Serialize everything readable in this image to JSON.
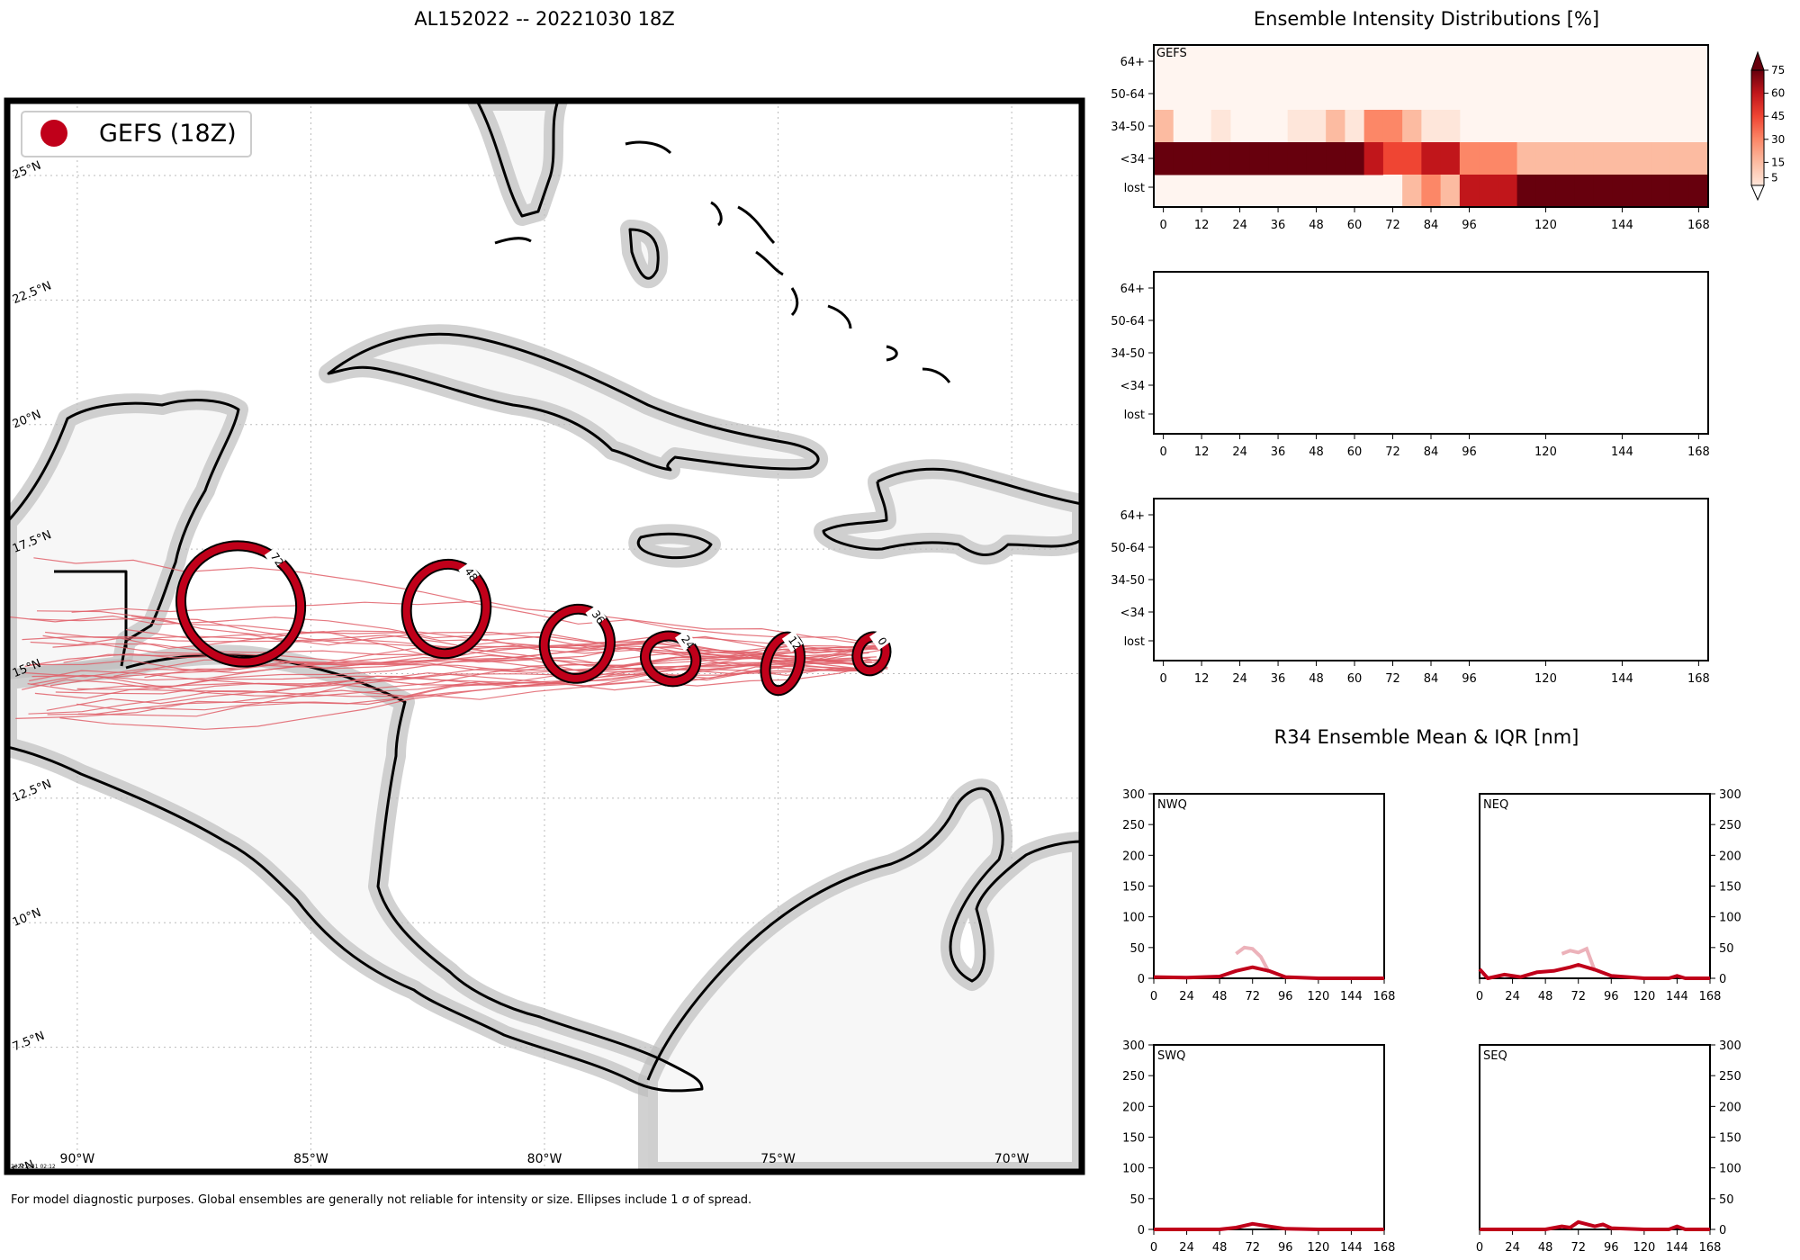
{
  "page": {
    "map_title": "AL152022 -- 20221030 18Z",
    "intensity_title": "Ensemble Intensity Distributions [%]",
    "r34_title": "R34 Ensemble Mean & IQR [nm]",
    "footer": "For model diagnostic purposes. Global ensembles are generally not reliable for intensity or size. Ellipses include 1 σ of spread.",
    "stamp": "20221031 02:12",
    "legend_label": "GEFS (18Z)",
    "colors": {
      "accent": "#c0001a",
      "track": "#e0606a",
      "land": "#f7f7f7",
      "coast_shade": "#cfcfcf"
    }
  },
  "chart_data": [
    {
      "type": "map",
      "title": "AL152022 -- 20221030 18Z",
      "lon_range": [
        -91.5,
        -68.5
      ],
      "lat_range": [
        5,
        26.5
      ],
      "lon_ticks": [
        "90°W",
        "85°W",
        "80°W",
        "75°W",
        "70°W"
      ],
      "lat_ticks": [
        "5°N",
        "7.5°N",
        "10°N",
        "12.5°N",
        "15°N",
        "17.5°N",
        "20°N",
        "22.5°N",
        "25°N"
      ],
      "legend": [
        "GEFS (18Z)"
      ],
      "ellipses": [
        {
          "label": "0",
          "lon": -73.0,
          "lat": 15.4,
          "rx_deg": 0.3,
          "ry_deg": 0.35,
          "angle": 20
        },
        {
          "label": "12",
          "lon": -74.9,
          "lat": 15.2,
          "rx_deg": 0.35,
          "ry_deg": 0.55,
          "angle": 15
        },
        {
          "label": "24",
          "lon": -77.3,
          "lat": 15.3,
          "rx_deg": 0.55,
          "ry_deg": 0.45,
          "angle": 20
        },
        {
          "label": "36",
          "lon": -79.3,
          "lat": 15.6,
          "rx_deg": 0.7,
          "ry_deg": 0.7,
          "angle": 20
        },
        {
          "label": "48",
          "lon": -82.1,
          "lat": 16.3,
          "rx_deg": 0.85,
          "ry_deg": 0.9,
          "angle": 10
        },
        {
          "label": "72",
          "lon": -86.5,
          "lat": 16.4,
          "rx_deg": 1.3,
          "ry_deg": 1.15,
          "angle": 30
        }
      ]
    },
    {
      "type": "heatmap",
      "title": "Ensemble Intensity Distributions [%]",
      "panel_label": "GEFS",
      "rows": [
        "64+",
        "50-64",
        "34-50",
        "<34",
        "lost"
      ],
      "hours": [
        0,
        6,
        12,
        18,
        24,
        30,
        36,
        42,
        48,
        54,
        60,
        66,
        72,
        78,
        84,
        90,
        96,
        102,
        108,
        114,
        120,
        126,
        132,
        138,
        144,
        150,
        156,
        162,
        168
      ],
      "x_ticks": [
        0,
        12,
        24,
        36,
        48,
        60,
        72,
        84,
        96,
        120,
        144,
        168
      ],
      "values": {
        "64+": [
          0,
          0,
          0,
          0,
          0,
          0,
          0,
          0,
          0,
          0,
          0,
          0,
          0,
          0,
          0,
          0,
          0,
          0,
          0,
          0,
          0,
          0,
          0,
          0,
          0,
          0,
          0,
          0,
          0
        ],
        "50-64": [
          0,
          0,
          0,
          0,
          0,
          0,
          0,
          0,
          0,
          0,
          0,
          3,
          0,
          3,
          0,
          0,
          0,
          0,
          0,
          0,
          0,
          0,
          0,
          0,
          0,
          0,
          0,
          0,
          0
        ],
        "34-50": [
          20,
          0,
          0,
          5,
          0,
          0,
          0,
          5,
          12,
          20,
          10,
          35,
          40,
          20,
          10,
          10,
          0,
          0,
          0,
          0,
          0,
          0,
          0,
          0,
          0,
          0,
          0,
          0,
          0
        ],
        "<34": [
          80,
          80,
          80,
          80,
          80,
          80,
          80,
          80,
          80,
          80,
          80,
          65,
          55,
          50,
          60,
          70,
          40,
          40,
          40,
          25,
          25,
          25,
          25,
          25,
          25,
          25,
          25,
          25,
          25
        ],
        "lost": [
          0,
          0,
          0,
          0,
          0,
          0,
          0,
          0,
          0,
          0,
          0,
          0,
          3,
          25,
          30,
          20,
          60,
          60,
          60,
          75,
          75,
          75,
          75,
          75,
          75,
          75,
          75,
          75,
          75
        ]
      },
      "empty_panels": 2,
      "colorbar": {
        "ticks": [
          5,
          15,
          30,
          45,
          60,
          75
        ],
        "label": "%"
      }
    },
    {
      "type": "line",
      "title": "R34 Ensemble Mean & IQR [nm]",
      "x_ticks": [
        0,
        24,
        48,
        72,
        96,
        120,
        144,
        168
      ],
      "y_ticks": [
        0,
        50,
        100,
        150,
        200,
        250,
        300
      ],
      "ylim": [
        0,
        300
      ],
      "xlim": [
        0,
        168
      ],
      "panels": [
        {
          "name": "NWQ",
          "mean": [
            [
              0,
              2
            ],
            [
              24,
              1
            ],
            [
              48,
              3
            ],
            [
              60,
              12
            ],
            [
              72,
              18
            ],
            [
              84,
              12
            ],
            [
              96,
              2
            ],
            [
              120,
              0
            ],
            [
              144,
              0
            ],
            [
              168,
              0
            ]
          ],
          "upper": [
            [
              60,
              40
            ],
            [
              66,
              50
            ],
            [
              72,
              48
            ],
            [
              78,
              35
            ],
            [
              84,
              10
            ]
          ]
        },
        {
          "name": "NEQ",
          "mean": [
            [
              0,
              15
            ],
            [
              6,
              0
            ],
            [
              18,
              6
            ],
            [
              30,
              2
            ],
            [
              42,
              10
            ],
            [
              54,
              12
            ],
            [
              66,
              18
            ],
            [
              72,
              22
            ],
            [
              84,
              14
            ],
            [
              96,
              4
            ],
            [
              120,
              0
            ],
            [
              138,
              0
            ],
            [
              144,
              4
            ],
            [
              150,
              0
            ],
            [
              168,
              0
            ]
          ],
          "upper": [
            [
              60,
              40
            ],
            [
              66,
              45
            ],
            [
              72,
              42
            ],
            [
              78,
              48
            ],
            [
              84,
              12
            ]
          ]
        },
        {
          "name": "SWQ",
          "mean": [
            [
              0,
              0
            ],
            [
              48,
              0
            ],
            [
              60,
              3
            ],
            [
              72,
              9
            ],
            [
              84,
              5
            ],
            [
              96,
              1
            ],
            [
              120,
              0
            ],
            [
              168,
              0
            ]
          ],
          "upper": []
        },
        {
          "name": "SEQ",
          "mean": [
            [
              0,
              0
            ],
            [
              48,
              0
            ],
            [
              60,
              5
            ],
            [
              66,
              3
            ],
            [
              72,
              12
            ],
            [
              84,
              5
            ],
            [
              90,
              8
            ],
            [
              96,
              2
            ],
            [
              120,
              0
            ],
            [
              138,
              0
            ],
            [
              144,
              5
            ],
            [
              150,
              0
            ],
            [
              168,
              0
            ]
          ],
          "upper": []
        }
      ]
    }
  ]
}
